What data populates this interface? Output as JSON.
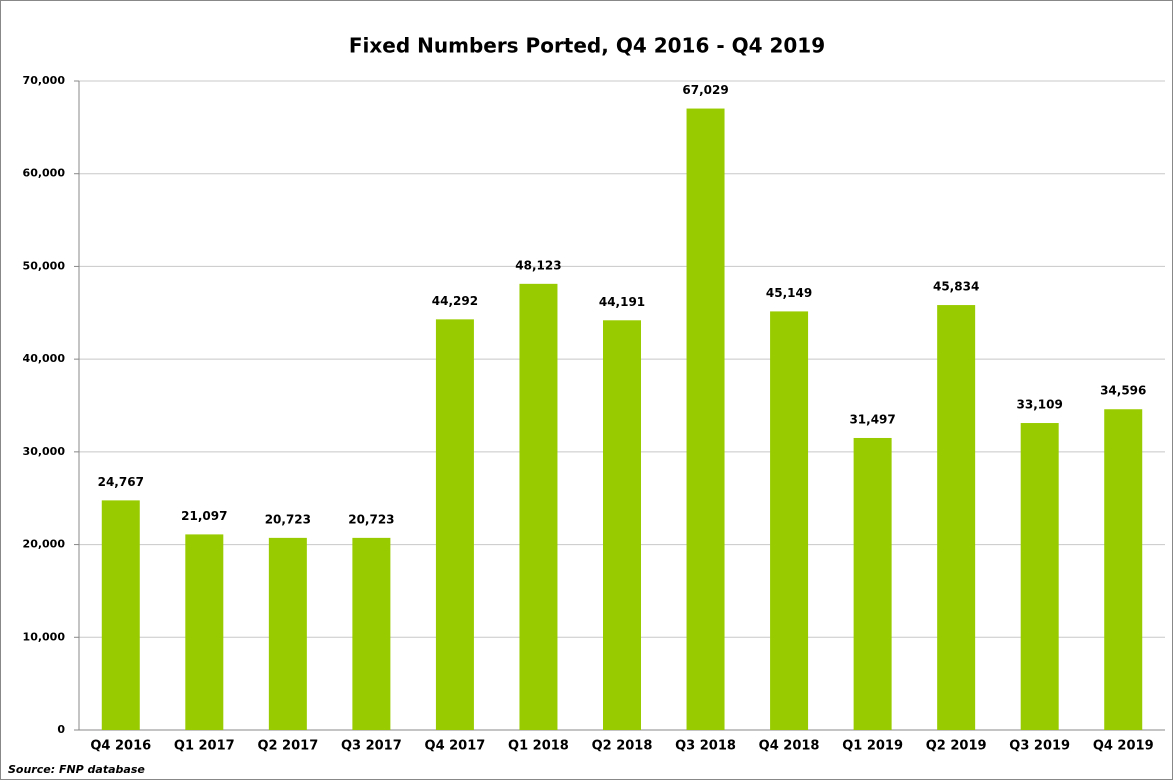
{
  "chart_data": {
    "type": "bar",
    "title": "Fixed Numbers Ported, Q4 2016 - Q4 2019",
    "categories": [
      "Q4 2016",
      "Q1 2017",
      "Q2 2017",
      "Q3 2017",
      "Q4 2017",
      "Q1 2018",
      "Q2 2018",
      "Q3 2018",
      "Q4 2018",
      "Q1 2019",
      "Q2 2019",
      "Q3 2019",
      "Q4 2019"
    ],
    "values": [
      24767,
      21097,
      20723,
      20723,
      44292,
      48123,
      44191,
      67029,
      45149,
      31497,
      45834,
      33109,
      34596
    ],
    "value_labels": [
      "24,767",
      "21,097",
      "20,723",
      "20,723",
      "44,292",
      "48,123",
      "44,191",
      "67,029",
      "45,149",
      "31,497",
      "45,834",
      "33,109",
      "34,596"
    ],
    "color": "#99cc00",
    "ylim": [
      0,
      70000
    ],
    "yticks": [
      0,
      {
        "value": 10000,
        "label": "10,000"
      },
      {
        "value": 20000,
        "label": "20,000"
      },
      {
        "value": 30000,
        "label": "30,000"
      },
      {
        "value": 40000,
        "label": "40,000"
      },
      {
        "value": 50000,
        "label": "50,000"
      },
      {
        "value": 60000,
        "label": "60,000"
      },
      {
        "value": 70000,
        "label": "70,000"
      }
    ],
    "grid": true,
    "source": "Source: FNP database"
  }
}
